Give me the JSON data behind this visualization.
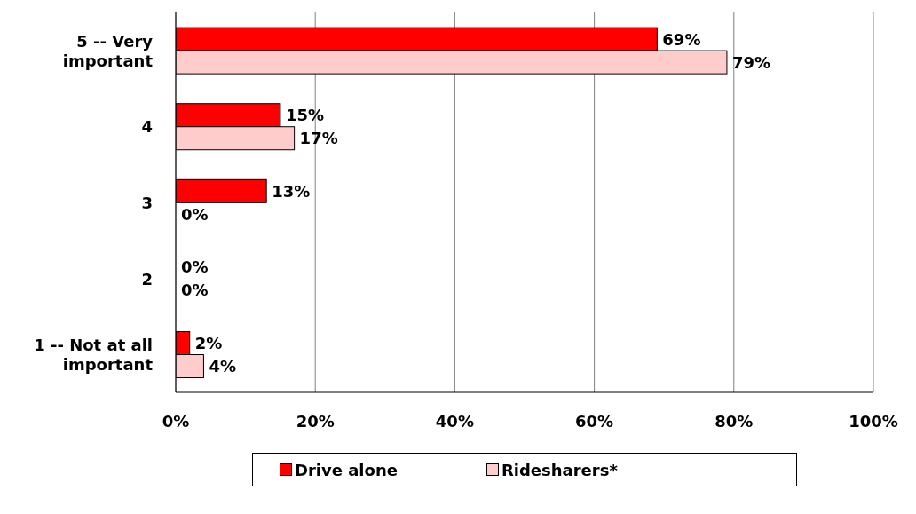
{
  "chart_data": {
    "type": "bar",
    "orientation": "horizontal",
    "categories": [
      "5 -- Very important",
      "4",
      "3",
      "2",
      "1 -- Not at all important"
    ],
    "series": [
      {
        "name": "Drive alone",
        "color": "#ff0000",
        "values": [
          69,
          15,
          13,
          0,
          2
        ],
        "value_labels": [
          "69%",
          "15%",
          "13%",
          "0%",
          "2%"
        ]
      },
      {
        "name": "Ridesharers*",
        "color": "#ffcccc",
        "values": [
          79,
          17,
          0,
          0,
          4
        ],
        "value_labels": [
          "79%",
          "17%",
          "0%",
          "0%",
          "4%"
        ]
      }
    ],
    "xlim": [
      0,
      100
    ],
    "xticks": [
      {
        "value": 0,
        "label": "0%"
      },
      {
        "value": 20,
        "label": "20%"
      },
      {
        "value": 40,
        "label": "40%"
      },
      {
        "value": 60,
        "label": "60%"
      },
      {
        "value": 80,
        "label": "80%"
      },
      {
        "value": 100,
        "label": "100%"
      }
    ],
    "grid": "x",
    "legend": "bottom"
  }
}
